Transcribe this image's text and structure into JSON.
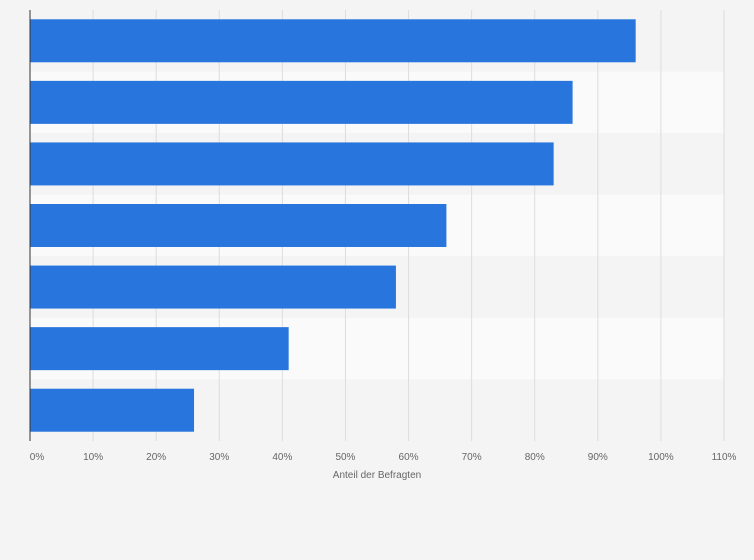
{
  "chart_data": {
    "type": "bar",
    "orientation": "horizontal",
    "categories": [
      "",
      "",
      "",
      "",
      "",
      "",
      ""
    ],
    "values": [
      96,
      86,
      83,
      66,
      58,
      41,
      26
    ],
    "xlabel": "Anteil der Befragten",
    "ylabel": "",
    "xlim": [
      0,
      110
    ],
    "xticks": [
      {
        "value": 0,
        "label": "0%"
      },
      {
        "value": 10,
        "label": "10%"
      },
      {
        "value": 20,
        "label": "20%"
      },
      {
        "value": 30,
        "label": "30%"
      },
      {
        "value": 40,
        "label": "40%"
      },
      {
        "value": 50,
        "label": "50%"
      },
      {
        "value": 60,
        "label": "60%"
      },
      {
        "value": 70,
        "label": "70%"
      },
      {
        "value": 80,
        "label": "80%"
      },
      {
        "value": 90,
        "label": "90%"
      },
      {
        "value": 100,
        "label": "100%"
      },
      {
        "value": 110,
        "label": "110%"
      }
    ],
    "grid": true,
    "colors": {
      "bar": "#2876dd",
      "background": "#f4f4f4",
      "band_light": "#fafafa",
      "band_dark": "#f4f4f4",
      "gridline": "#dddddd",
      "axis": "#333333",
      "text": "#666666"
    }
  }
}
